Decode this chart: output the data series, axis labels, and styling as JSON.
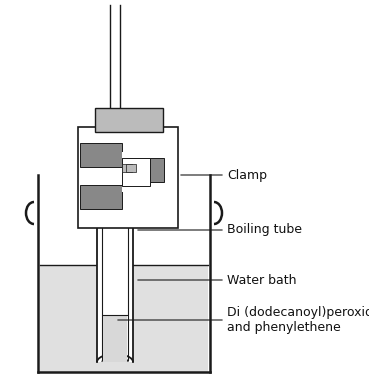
{
  "bg_color": "#ffffff",
  "line_color": "#1a1a1a",
  "gray_dark": "#888888",
  "gray_light": "#bbbbbb",
  "water_color": "#e0e0e0",
  "tube_fill": "#d8d8d8",
  "labels": {
    "clamp": "Clamp",
    "boiling_tube": "Boiling tube",
    "water_bath": "Water bath",
    "chemical": "Di (dodecanoyl)peroxide\nand phenylethene"
  },
  "label_fontsize": 9,
  "figsize": [
    3.69,
    3.82
  ],
  "dpi": 100
}
